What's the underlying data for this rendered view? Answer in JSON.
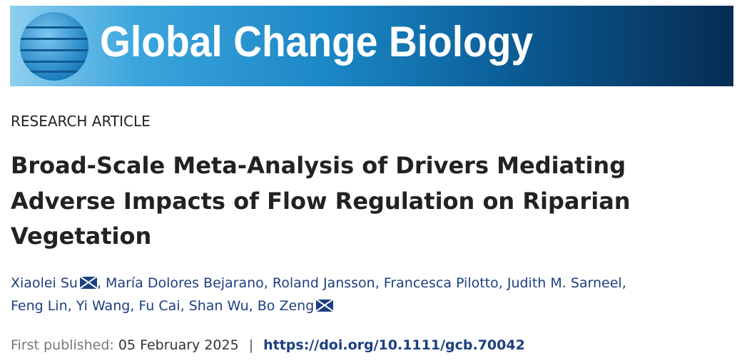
{
  "journal": {
    "name": "Global Change Biology"
  },
  "article": {
    "type": "RESEARCH ARTICLE",
    "title": "Broad-Scale Meta-Analysis of Drivers Mediating Adverse Impacts of Flow Regulation on Riparian Vegetation",
    "authors": [
      "Xiaolei Su",
      "María Dolores Bejarano",
      "Roland Jansson",
      "Francesca Pilotto",
      "Judith M. Sarneel",
      "Feng Lin",
      "Yi Wang",
      "Fu Cai",
      "Shan Wu",
      "Bo Zeng"
    ],
    "published_label": "First published:",
    "published_date": "05 February 2025",
    "separator": "|",
    "doi": "https://doi.org/10.1111/gcb.70042"
  },
  "icons": {
    "corresponding_author": "envelope-icon"
  }
}
